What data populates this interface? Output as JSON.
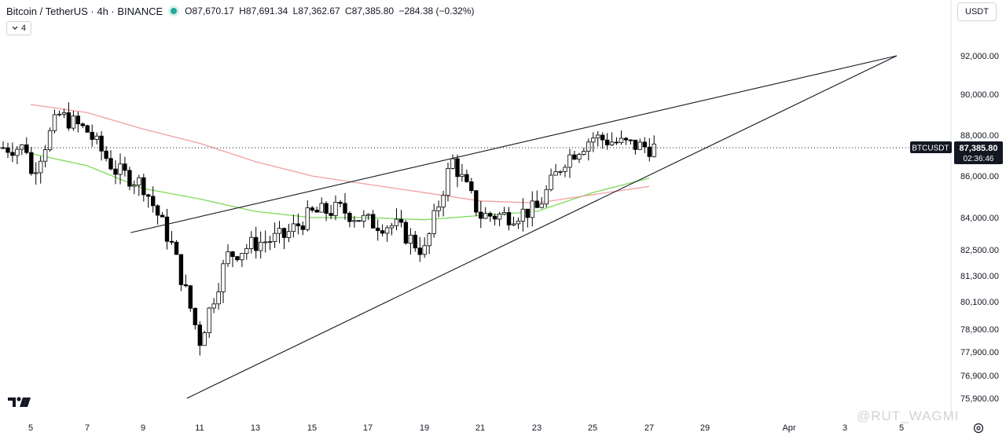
{
  "header": {
    "symbol": "Bitcoin / TetherUS · 4h · BINANCE",
    "ohlc": [
      "O87,670.17",
      "H87,691.34",
      "L87,362.67",
      "C87,385.80",
      "−284.38 (−0.32%)"
    ]
  },
  "indicator_toggle": {
    "label": "4",
    "icon": "chevron-down-icon"
  },
  "currency_button": {
    "label": "USDT"
  },
  "price_badge": {
    "symbol": "BTCUSDT",
    "price": "87,385.80",
    "countdown": "02:36:46"
  },
  "watermark": "@RUT_WAGMI",
  "colors": {
    "up": "#ffffff",
    "down": "#000000",
    "fast_ma": "#7ed957",
    "slow_ma": "#f0a0a0",
    "trendline": "#131722",
    "price_line": "#131722",
    "badge_bg": "#131722"
  },
  "chart_data": {
    "type": "candlestick",
    "y_axis": {
      "ticks": [
        "92,000.00",
        "90,000.00",
        "88,000.00",
        "86,000.00",
        "84,000.00",
        "82,500.00",
        "81,300.00",
        "80,100.00",
        "78,900.00",
        "77,900.00",
        "76,900.00",
        "75,900.00"
      ],
      "tick_values": [
        92000,
        90000,
        88000,
        86000,
        84000,
        82500,
        81300,
        80100,
        78900,
        77900,
        76900,
        75900
      ]
    },
    "x_axis": {
      "ticks": [
        "5",
        "7",
        "9",
        "11",
        "13",
        "15",
        "17",
        "19",
        "21",
        "23",
        "25",
        "27",
        "29",
        "Apr",
        "3",
        "5"
      ]
    },
    "last_price": 87385.8,
    "approx_close_path": [
      [
        "5",
        86000
      ],
      [
        "6",
        89000
      ],
      [
        "7",
        88200
      ],
      [
        "8",
        86300
      ],
      [
        "9",
        85600
      ],
      [
        "10",
        82800
      ],
      [
        "11",
        78400
      ],
      [
        "12",
        82200
      ],
      [
        "13",
        82800
      ],
      [
        "14",
        83100
      ],
      [
        "15",
        84200
      ],
      [
        "16",
        84400
      ],
      [
        "17",
        83800
      ],
      [
        "18",
        83600
      ],
      [
        "19",
        82400
      ],
      [
        "20",
        86800
      ],
      [
        "21",
        84100
      ],
      [
        "22",
        84100
      ],
      [
        "23",
        84400
      ],
      [
        "24",
        86800
      ],
      [
        "25",
        87900
      ],
      [
        "26",
        87600
      ],
      [
        "27",
        87385.8
      ]
    ],
    "trendlines": [
      {
        "name": "upper",
        "points": [
          [
            "8",
            83300
          ],
          [
            "Apr",
            92000
          ]
        ]
      },
      {
        "name": "lower",
        "points": [
          [
            "10",
            75900
          ],
          [
            "Apr",
            92000
          ]
        ]
      }
    ],
    "moving_averages": [
      {
        "color": "green",
        "points": [
          [
            "5",
            87100
          ],
          [
            "7",
            86500
          ],
          [
            "9",
            85400
          ],
          [
            "11",
            84900
          ],
          [
            "13",
            84300
          ],
          [
            "15",
            84000
          ],
          [
            "17",
            84000
          ],
          [
            "19",
            83900
          ],
          [
            "21",
            84100
          ],
          [
            "23",
            84300
          ],
          [
            "25",
            85200
          ],
          [
            "27",
            85900
          ]
        ]
      },
      {
        "color": "red",
        "points": [
          [
            "5",
            89500
          ],
          [
            "7",
            89100
          ],
          [
            "9",
            88300
          ],
          [
            "11",
            87600
          ],
          [
            "13",
            86700
          ],
          [
            "15",
            86000
          ],
          [
            "17",
            85600
          ],
          [
            "19",
            85200
          ],
          [
            "21",
            84800
          ],
          [
            "23",
            84700
          ],
          [
            "25",
            85100
          ],
          [
            "27",
            85500
          ]
        ]
      }
    ]
  }
}
